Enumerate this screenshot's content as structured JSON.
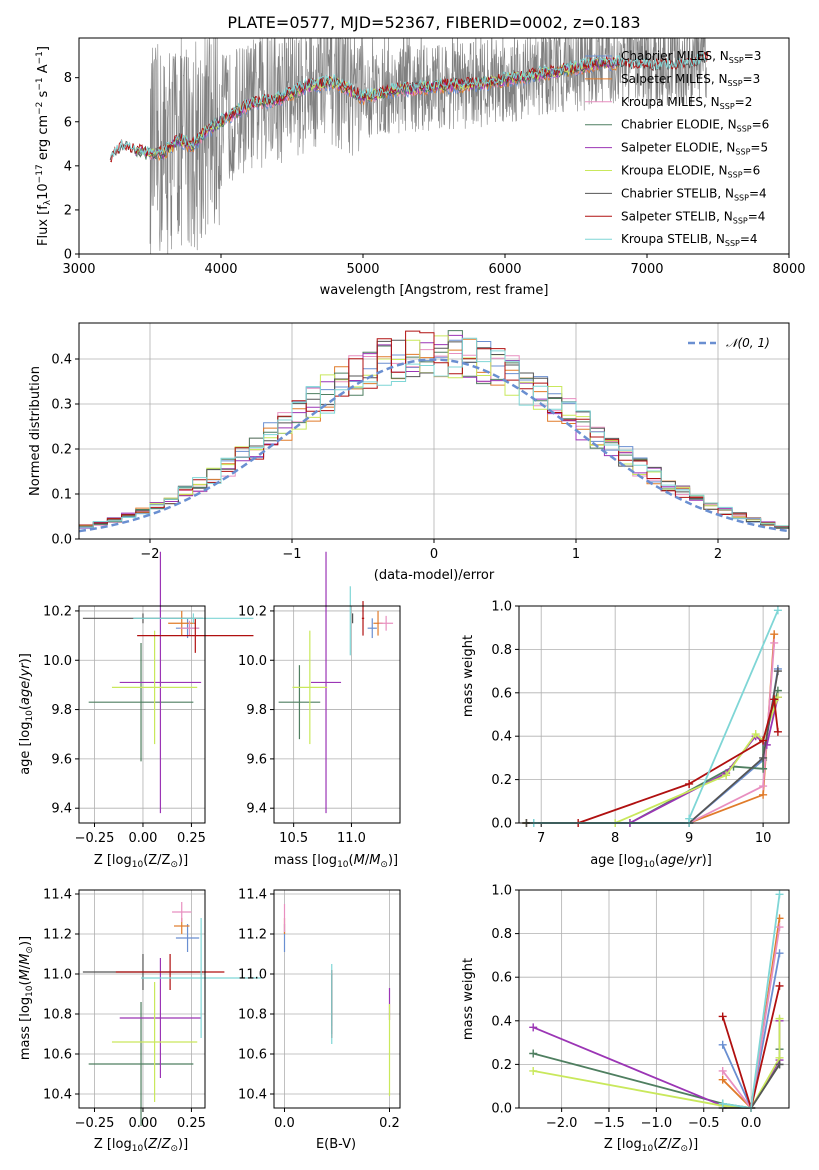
{
  "title": "PLATE=0577, MJD=52367, FIBERID=0002, z=0.183",
  "colors": {
    "series": [
      "#6a8fd1",
      "#e07b2a",
      "#e88fc0",
      "#4f7f60",
      "#9b35b5",
      "#c9e85c",
      "#555555",
      "#b01010",
      "#7fd6d6"
    ],
    "observed": "#808080"
  },
  "chart_data": [
    {
      "type": "line",
      "ylabel": "Flux [f",
      "ylabel_sub": "λ",
      "ylabel_rest": "10",
      "ylabel_exp1": "−17",
      "ylabel_mid": " erg cm",
      "ylabel_exp2": "−2",
      "ylabel_mid2": " s",
      "ylabel_exp3": "−1",
      "ylabel_end": " A",
      "ylabel_exp4": "−1",
      "ylabel_close": "]",
      "xlabel": "wavelength [Angstrom, rest frame]",
      "xlim": [
        3000,
        8000
      ],
      "ylim": [
        0,
        9.8
      ],
      "xticks": [
        "3000",
        "4000",
        "5000",
        "6000",
        "7000",
        "8000"
      ],
      "yticks": [
        "0",
        "2",
        "4",
        "6",
        "8"
      ],
      "legend_position": "upper-right",
      "series": [
        {
          "name_main": "Chabrier MILES, N",
          "name_sub": "SSP",
          "name_end": "=3"
        },
        {
          "name_main": "Salpeter MILES, N",
          "name_sub": "SSP",
          "name_end": "=3"
        },
        {
          "name_main": "Kroupa MILES, N",
          "name_sub": "SSP",
          "name_end": "=2"
        },
        {
          "name_main": "Chabrier ELODIE, N",
          "name_sub": "SSP",
          "name_end": "=6"
        },
        {
          "name_main": "Salpeter ELODIE, N",
          "name_sub": "SSP",
          "name_end": "=5"
        },
        {
          "name_main": "Kroupa ELODIE, N",
          "name_sub": "SSP",
          "name_end": "=6"
        },
        {
          "name_main": "Chabrier STELIB, N",
          "name_sub": "SSP",
          "name_end": "=4"
        },
        {
          "name_main": "Salpeter STELIB, N",
          "name_sub": "SSP",
          "name_end": "=4"
        },
        {
          "name_main": "Kroupa STELIB, N",
          "name_sub": "SSP",
          "name_end": "=4"
        }
      ],
      "continuum": {
        "x": [
          3220,
          3300,
          3400,
          3500,
          3600,
          3700,
          3800,
          3900,
          4000,
          4200,
          4400,
          4600,
          4800,
          5000,
          5200,
          5500,
          5800,
          6100,
          6400,
          6700,
          7000,
          7300,
          7450
        ],
        "y": [
          4.2,
          4.9,
          4.7,
          4.5,
          4.6,
          5.2,
          4.9,
          5.6,
          6.0,
          6.8,
          7.0,
          7.6,
          7.8,
          7.1,
          7.4,
          7.6,
          7.7,
          8.0,
          8.3,
          8.7,
          8.5,
          8.6,
          8.9
        ]
      }
    },
    {
      "type": "bar",
      "xlabel": "(data-model)/error",
      "ylabel": "Normed distribution",
      "xlim": [
        -2.5,
        2.5
      ],
      "ylim": [
        0,
        0.48
      ],
      "xticks": [
        "−2",
        "−1",
        "0",
        "1",
        "2"
      ],
      "yticks": [
        "0.0",
        "0.1",
        "0.2",
        "0.3",
        "0.4"
      ],
      "reference_label": "𝒩(0, 1)",
      "bin_width": 0.1
    },
    {
      "type": "scatter",
      "xlabel_main": "Z [log",
      "xlabel_sub": "10",
      "xlabel_end": "(Z/Z",
      "xlabel_sun": "⊙",
      "xlabel_close": ")]",
      "ylabel": "age  [log₁₀(age/yr)]",
      "xlim": [
        -0.33,
        0.32
      ],
      "ylim": [
        9.34,
        10.22
      ],
      "xticks": [
        "−0.25",
        "0.00",
        "0.25"
      ],
      "yticks": [
        "9.4",
        "9.6",
        "9.8",
        "10.0",
        "10.2"
      ],
      "points": [
        {
          "x": 0.23,
          "y": 10.13,
          "xe": 0.06,
          "ye": 0.04
        },
        {
          "x": 0.2,
          "y": 10.15,
          "xe": 0.07,
          "ye": 0.05
        },
        {
          "x": 0.24,
          "y": 10.13,
          "xe": 0.05,
          "ye": 0.03
        },
        {
          "x": -0.01,
          "y": 9.83,
          "xe": 0.27,
          "ye": 0.24
        },
        {
          "x": 0.09,
          "y": 9.91,
          "xe": 0.21,
          "ye": 0.53
        },
        {
          "x": 0.06,
          "y": 9.89,
          "xe": 0.22,
          "ye": 0.23
        },
        {
          "x": 0.0,
          "y": 10.17,
          "xe": 0.31,
          "ye": 0.02
        },
        {
          "x": 0.27,
          "y": 10.1,
          "xe": 0.3,
          "ye": 0.07
        },
        {
          "x": 0.26,
          "y": 10.17,
          "xe": 0.31,
          "ye": 0.02
        }
      ]
    },
    {
      "type": "scatter",
      "xlabel": "mass [log₁₀(M/M☉)]",
      "xlim": [
        10.33,
        11.42
      ],
      "ylim": [
        9.34,
        10.22
      ],
      "xticks": [
        "10.5",
        "11.0"
      ],
      "yticks": [
        "9.4",
        "9.6",
        "9.8",
        "10.0",
        "10.2"
      ],
      "points": [
        {
          "x": 11.18,
          "y": 10.13,
          "xe": 0.04,
          "ye": 0.04
        },
        {
          "x": 11.23,
          "y": 10.15,
          "xe": 0.04,
          "ye": 0.05
        },
        {
          "x": 11.3,
          "y": 10.15,
          "xe": 0.06,
          "ye": 0.03
        },
        {
          "x": 10.55,
          "y": 9.83,
          "xe": 0.18,
          "ye": 0.15
        },
        {
          "x": 10.78,
          "y": 9.91,
          "xe": 0.13,
          "ye": 0.53
        },
        {
          "x": 10.64,
          "y": 9.89,
          "xe": 0.15,
          "ye": 0.23
        },
        {
          "x": 11.01,
          "y": 10.17,
          "xe": 0.0,
          "ye": 0.02
        },
        {
          "x": 11.1,
          "y": 10.17,
          "xe": 0.01,
          "ye": 0.07
        },
        {
          "x": 10.99,
          "y": 10.16,
          "xe": 0.0,
          "ye": 0.14
        }
      ]
    },
    {
      "type": "line",
      "xlabel": "age  [log₁₀(age/yr)]",
      "ylabel": "mass weight",
      "xlim": [
        6.7,
        10.35
      ],
      "ylim": [
        0,
        1.0
      ],
      "xticks": [
        "7",
        "8",
        "9",
        "10"
      ],
      "yticks": [
        "0.0",
        "0.2",
        "0.4",
        "0.6",
        "0.8",
        "1.0"
      ]
    },
    {
      "type": "scatter",
      "xlabel": "Z [log₁₀(Z/Z☉)]",
      "ylabel": "mass [log₁₀(M/M☉)]",
      "xlim": [
        -0.33,
        0.32
      ],
      "ylim": [
        10.33,
        11.42
      ],
      "xticks": [
        "−0.25",
        "0.00",
        "0.25"
      ],
      "yticks": [
        "10.4",
        "10.6",
        "10.8",
        "11.0",
        "11.2",
        "11.4"
      ],
      "points": [
        {
          "x": 0.23,
          "y": 11.18,
          "xe": 0.06,
          "ye": 0.07
        },
        {
          "x": 0.2,
          "y": 11.24,
          "xe": 0.04,
          "ye": 0.04
        },
        {
          "x": 0.2,
          "y": 11.31,
          "xe": 0.05,
          "ye": 0.05
        },
        {
          "x": -0.01,
          "y": 10.55,
          "xe": 0.27,
          "ye": 0.31
        },
        {
          "x": 0.09,
          "y": 10.78,
          "xe": 0.21,
          "ye": 0.3
        },
        {
          "x": 0.06,
          "y": 10.66,
          "xe": 0.22,
          "ye": 0.3
        },
        {
          "x": 0.0,
          "y": 11.01,
          "xe": 0.31,
          "ye": 0.09
        },
        {
          "x": 0.14,
          "y": 11.01,
          "xe": 0.28,
          "ye": 0.09
        },
        {
          "x": 0.3,
          "y": 10.98,
          "xe": 0.31,
          "ye": 0.3
        }
      ]
    },
    {
      "type": "scatter",
      "xlabel": "E(B-V)",
      "xlim": [
        -0.02,
        0.22
      ],
      "ylim": [
        10.33,
        11.42
      ],
      "xticks": [
        "0.0",
        "0.2"
      ],
      "yticks": [
        "10.4",
        "10.6",
        "10.8",
        "11.0",
        "11.2",
        "11.4"
      ],
      "points": [
        {
          "x": 0.0,
          "y": 11.18,
          "ye": 0.07
        },
        {
          "x": 0.0,
          "y": 11.24,
          "ye": 0.04
        },
        {
          "x": 0.0,
          "y": 11.28,
          "ye": 0.07
        },
        {
          "x": 0.09,
          "y": 10.83,
          "ye": 0.09
        },
        {
          "x": 0.2,
          "y": 10.85,
          "ye": 0.08
        },
        {
          "x": 0.2,
          "y": 10.62,
          "ye": 0.23
        },
        {
          "x": 0.09,
          "y": 10.85,
          "ye": 0.15
        },
        {
          "x": 0.09,
          "y": 10.85,
          "ye": 0.17
        },
        {
          "x": 0.09,
          "y": 10.85,
          "ye": 0.2
        }
      ]
    },
    {
      "type": "line",
      "xlabel": "Z [log₁₀(Z/Z☉)]",
      "ylabel": "mass weight",
      "xlim": [
        -2.45,
        0.4
      ],
      "ylim": [
        0,
        1.0
      ],
      "xticks": [
        "−2.0",
        "−1.5",
        "−1.0",
        "−0.5",
        "0.0"
      ],
      "yticks": [
        "0.0",
        "0.2",
        "0.4",
        "0.6",
        "0.8",
        "1.0"
      ]
    }
  ]
}
